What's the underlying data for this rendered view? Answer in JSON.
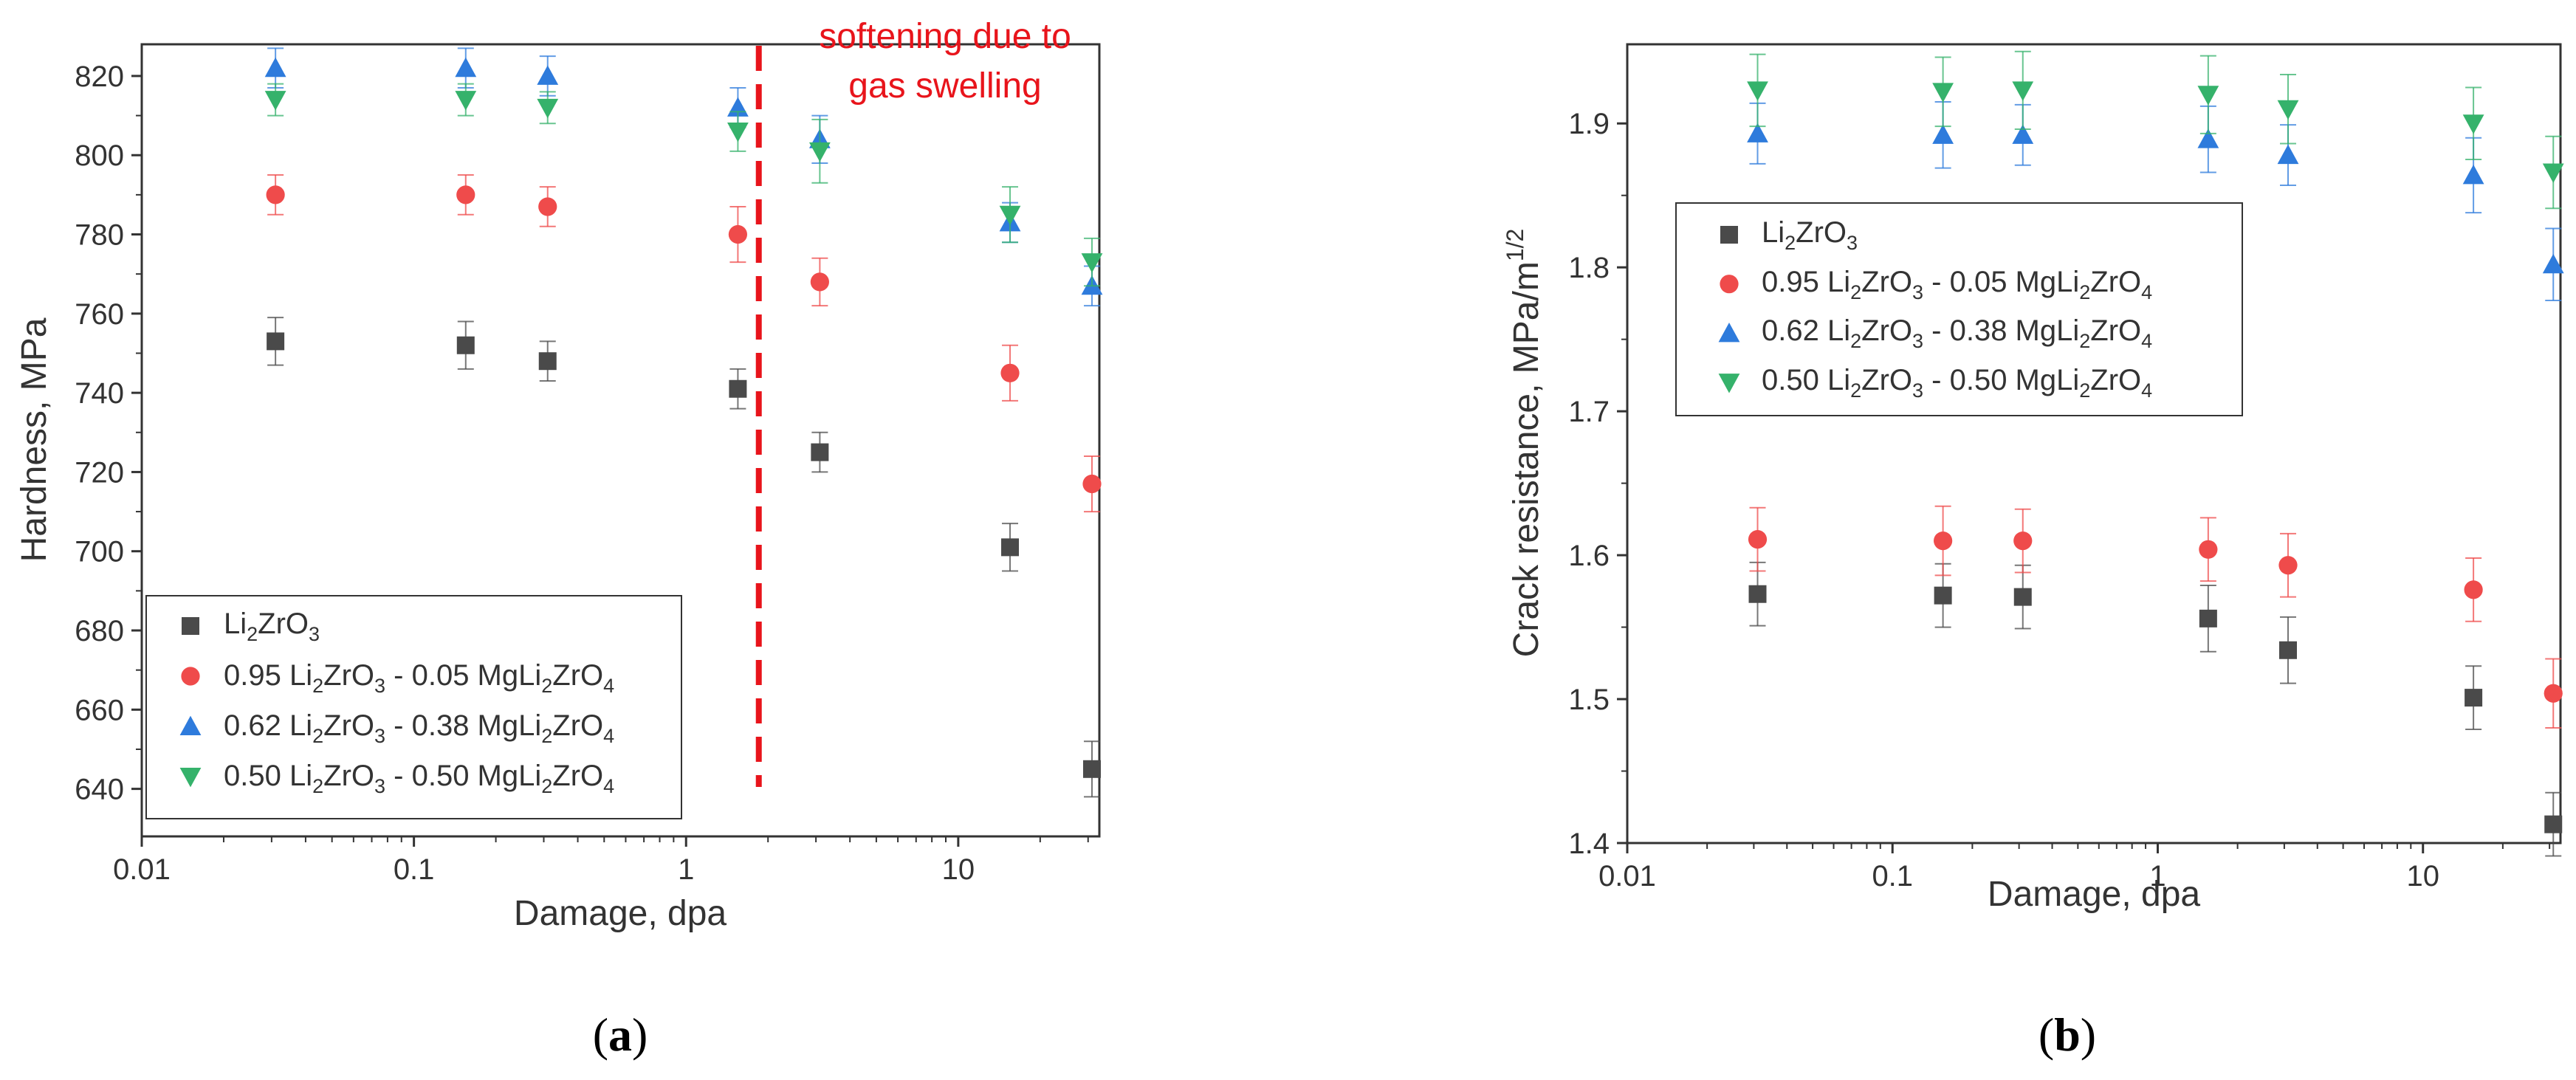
{
  "figure": {
    "panels": [
      {
        "label_open": "(",
        "label_letter": "a",
        "label_close": ")"
      },
      {
        "label_open": "(",
        "label_letter": "b",
        "label_close": ")"
      }
    ]
  },
  "chart_data": [
    {
      "type": "scatter",
      "title": "",
      "xlabel": "Damage, dpa",
      "ylabel": "Hardness, MPa",
      "xscale": "log",
      "xlim": [
        0.01,
        33
      ],
      "ylim": [
        628,
        828
      ],
      "x_ticks": [
        0.01,
        0.1,
        1,
        10
      ],
      "x_tick_labels": [
        "0.01",
        "0.1",
        "1",
        "10"
      ],
      "y_ticks": [
        640,
        660,
        680,
        700,
        720,
        740,
        760,
        780,
        800,
        820
      ],
      "y_tick_labels": [
        "640",
        "660",
        "680",
        "700",
        "720",
        "740",
        "760",
        "780",
        "800",
        "820"
      ],
      "legend_position": "bottom-left",
      "x": [
        0.031,
        0.155,
        0.31,
        1.55,
        3.1,
        15.5,
        31
      ],
      "series": [
        {
          "name": "Li2ZrO3",
          "marker": "square",
          "color": "#4a4a4a",
          "values": [
            753,
            752,
            748,
            741,
            725,
            701,
            645
          ],
          "errors": [
            6,
            6,
            5,
            5,
            5,
            6,
            7
          ]
        },
        {
          "name": "0.95 Li2ZrO3 - 0.05 MgLi2ZrO4",
          "marker": "circle",
          "color": "#ef4b4b",
          "values": [
            790,
            790,
            787,
            780,
            768,
            745,
            717
          ],
          "errors": [
            5,
            5,
            5,
            7,
            6,
            7,
            7
          ]
        },
        {
          "name": "0.62 Li2ZrO3 - 0.38 MgLi2ZrO4",
          "marker": "triangle-up",
          "color": "#2e7bdc",
          "values": [
            822,
            822,
            820,
            812,
            804,
            783,
            767
          ],
          "errors": [
            5,
            5,
            5,
            5,
            6,
            5,
            5
          ]
        },
        {
          "name": "0.50 Li2ZrO3 - 0.50 MgLi2ZrO4",
          "marker": "triangle-down",
          "color": "#35b26b",
          "values": [
            814,
            814,
            812,
            806,
            801,
            785,
            773
          ],
          "errors": [
            4,
            4,
            4,
            5,
            8,
            7,
            6
          ]
        }
      ],
      "annotation": {
        "text_line1": "softening due to",
        "text_line2": "gas swelling",
        "x": 1.85,
        "color": "#e8141b"
      }
    },
    {
      "type": "scatter",
      "title": "",
      "xlabel": "Damage, dpa",
      "ylabel_main": "Crack resistance, MPa/m",
      "ylabel_sup": "1/2",
      "xscale": "log",
      "xlim": [
        0.01,
        33
      ],
      "ylim": [
        1.4,
        1.955
      ],
      "x_ticks": [
        0.01,
        0.1,
        1,
        10
      ],
      "x_tick_labels": [
        "0.01",
        "0.1",
        "1",
        "10"
      ],
      "y_ticks": [
        1.4,
        1.5,
        1.6,
        1.7,
        1.8,
        1.9
      ],
      "y_tick_labels": [
        "1.4",
        "1.5",
        "1.6",
        "1.7",
        "1.8",
        "1.9"
      ],
      "legend_position": "center-left",
      "x": [
        0.031,
        0.155,
        0.31,
        1.55,
        3.1,
        15.5,
        31
      ],
      "series": [
        {
          "name": "Li2ZrO3",
          "marker": "square",
          "color": "#4a4a4a",
          "values": [
            1.573,
            1.572,
            1.571,
            1.556,
            1.534,
            1.501,
            1.413
          ],
          "errors": [
            0.022,
            0.022,
            0.022,
            0.023,
            0.023,
            0.022,
            0.022
          ]
        },
        {
          "name": "0.95 Li2ZrO3 - 0.05 MgLi2ZrO4",
          "marker": "circle",
          "color": "#ef4b4b",
          "values": [
            1.611,
            1.61,
            1.61,
            1.604,
            1.593,
            1.576,
            1.504
          ],
          "errors": [
            0.022,
            0.024,
            0.022,
            0.022,
            0.022,
            0.022,
            0.024
          ]
        },
        {
          "name": "0.62 Li2ZrO3 - 0.38 MgLi2ZrO4",
          "marker": "triangle-up",
          "color": "#2e7bdc",
          "values": [
            1.893,
            1.892,
            1.892,
            1.889,
            1.878,
            1.864,
            1.802
          ],
          "errors": [
            0.021,
            0.023,
            0.021,
            0.023,
            0.021,
            0.026,
            0.025
          ]
        },
        {
          "name": "0.50 Li2ZrO3 - 0.50 MgLi2ZrO4",
          "marker": "triangle-down",
          "color": "#35b26b",
          "values": [
            1.923,
            1.922,
            1.923,
            1.92,
            1.91,
            1.9,
            1.866
          ],
          "errors": [
            0.025,
            0.024,
            0.027,
            0.027,
            0.024,
            0.025,
            0.025
          ]
        }
      ]
    }
  ],
  "legend_entries": [
    {
      "p1": "Li",
      "s1": "2",
      "p2": "ZrO",
      "s2": "3",
      "p3": "",
      "s3": "",
      "p4": "",
      "s4": "",
      "p5": "",
      "s5": "",
      "p6": ""
    },
    {
      "p1": "0.95 Li",
      "s1": "2",
      "p2": "ZrO",
      "s2": "3",
      "p3": " - 0.05 MgLi",
      "s3": "2",
      "p4": "ZrO",
      "s4": "4",
      "p5": "",
      "s5": "",
      "p6": ""
    },
    {
      "p1": "0.62 Li",
      "s1": "2",
      "p2": "ZrO",
      "s2": "3",
      "p3": " - 0.38 MgLi",
      "s3": "2",
      "p4": "ZrO",
      "s4": "4",
      "p5": "",
      "s5": "",
      "p6": ""
    },
    {
      "p1": "0.50 Li",
      "s1": "2",
      "p2": "ZrO",
      "s2": "3",
      "p3": " - 0.50 MgLi",
      "s3": "2",
      "p4": "ZrO",
      "s4": "4",
      "p5": "",
      "s5": "",
      "p6": ""
    }
  ]
}
